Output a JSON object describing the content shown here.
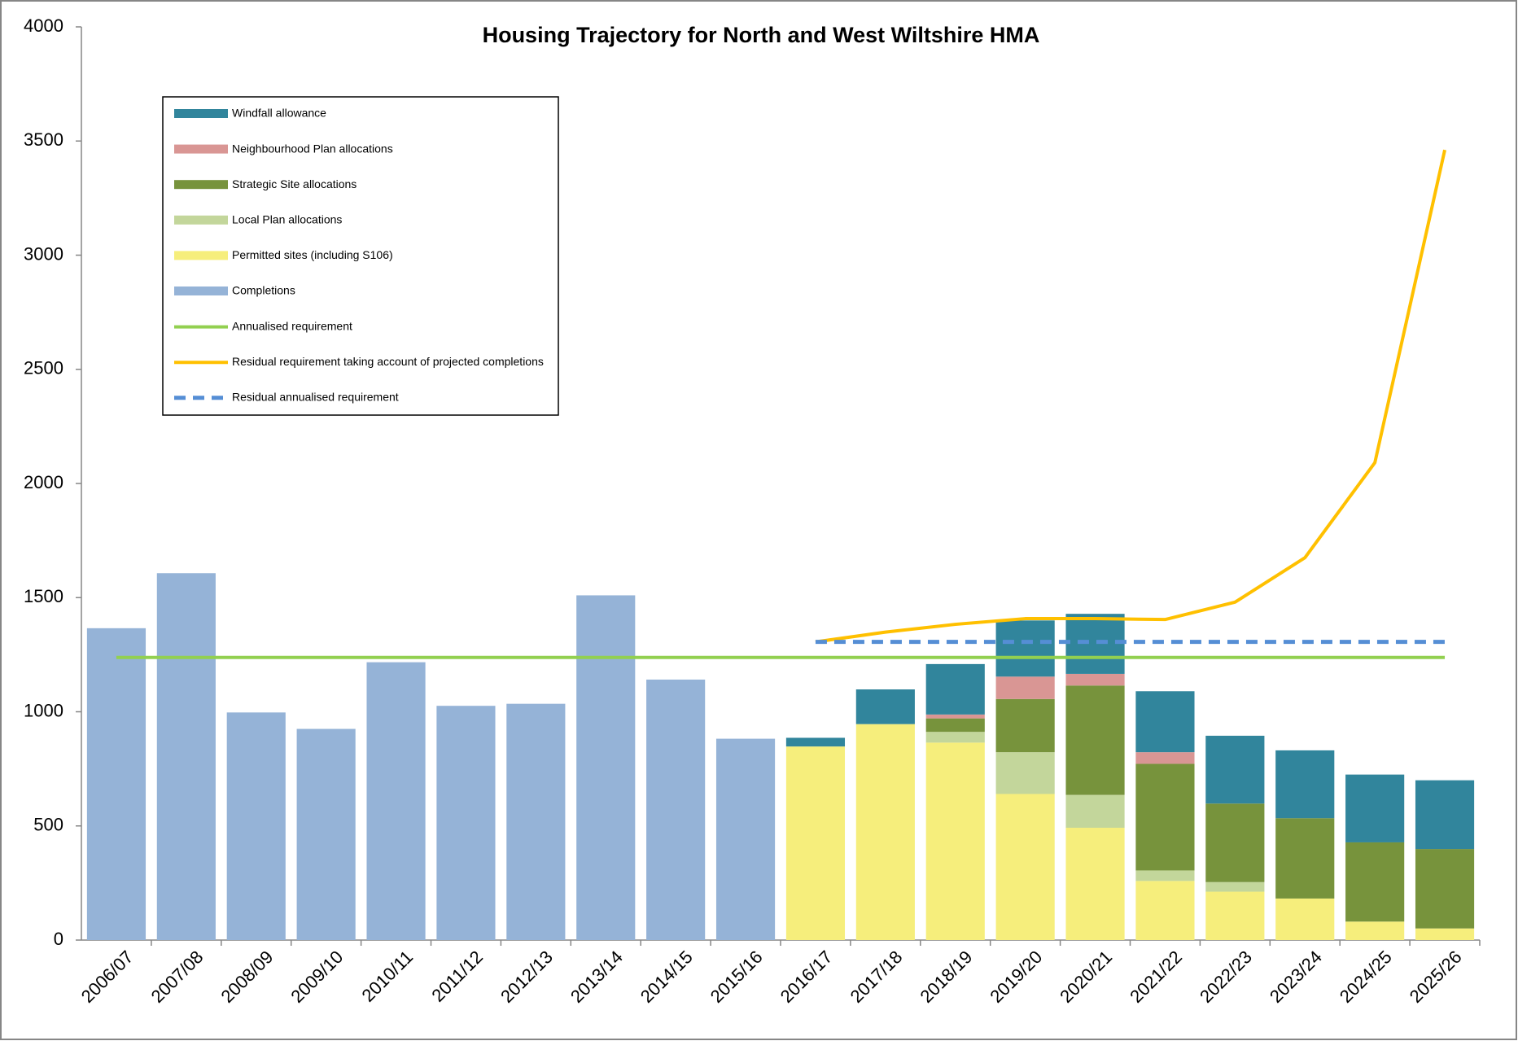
{
  "chart_data": {
    "type": "bar",
    "stacked": true,
    "title": "Housing Trajectory for North and West Wiltshire HMA",
    "categories": [
      "2006/07",
      "2007/08",
      "2008/09",
      "2009/10",
      "2010/11",
      "2011/12",
      "2012/13",
      "2013/14",
      "2014/15",
      "2015/16",
      "2016/17",
      "2017/18",
      "2018/19",
      "2019/20",
      "2020/21",
      "2021/22",
      "2022/23",
      "2023/24",
      "2024/25",
      "2025/26"
    ],
    "ylim": [
      0,
      4000
    ],
    "yticks": [
      0,
      500,
      1000,
      1500,
      2000,
      2500,
      3000,
      3500,
      4000
    ],
    "series": [
      {
        "name": "Windfall allowance",
        "color": "#31859c",
        "type": "bar",
        "values": [
          0,
          0,
          0,
          0,
          0,
          0,
          0,
          0,
          0,
          0,
          38,
          152,
          221,
          246,
          263,
          267,
          297,
          297,
          297,
          301
        ]
      },
      {
        "name": "Neighbourhood Plan allocations",
        "color": "#d99694",
        "type": "bar",
        "values": [
          0,
          0,
          0,
          0,
          0,
          0,
          0,
          0,
          0,
          0,
          0,
          0,
          17,
          98,
          51,
          51,
          0,
          0,
          0,
          0
        ]
      },
      {
        "name": "Strategic Site allocations",
        "color": "#77933c",
        "type": "bar",
        "values": [
          0,
          0,
          0,
          0,
          0,
          0,
          0,
          0,
          0,
          0,
          0,
          0,
          59,
          233,
          479,
          467,
          344,
          352,
          347,
          348
        ]
      },
      {
        "name": "Local Plan allocations",
        "color": "#c3d69b",
        "type": "bar",
        "values": [
          0,
          0,
          0,
          0,
          0,
          0,
          0,
          0,
          0,
          0,
          0,
          0,
          47,
          183,
          144,
          46,
          42,
          0,
          0,
          0
        ]
      },
      {
        "name": "Permitted sites (including S106)",
        "color": "#f6ee7c",
        "type": "bar",
        "values": [
          0,
          0,
          0,
          0,
          0,
          0,
          0,
          0,
          0,
          0,
          848,
          946,
          865,
          640,
          492,
          259,
          212,
          182,
          81,
          51
        ]
      },
      {
        "name": "Completions",
        "color": "#95b3d7",
        "type": "bar",
        "values": [
          1366,
          1607,
          997,
          925,
          1217,
          1026,
          1035,
          1510,
          1141,
          882,
          0,
          0,
          0,
          0,
          0,
          0,
          0,
          0,
          0,
          0
        ]
      },
      {
        "name": "Annualised requirement",
        "color": "#92d050",
        "type": "line",
        "values": [
          1238,
          1238,
          1238,
          1238,
          1238,
          1238,
          1238,
          1238,
          1238,
          1238,
          1238,
          1238,
          1238,
          1238,
          1238,
          1238,
          1238,
          1238,
          1238,
          1238
        ]
      },
      {
        "name": "Residual requirement taking account of projected completions",
        "color": "#ffc000",
        "type": "line",
        "values": [
          null,
          null,
          null,
          null,
          null,
          null,
          null,
          null,
          null,
          null,
          1306,
          1349,
          1383,
          1408,
          1408,
          1404,
          1480,
          1675,
          2091,
          3461
        ]
      },
      {
        "name": "Residual annualised requirement",
        "color": "#558ed5",
        "type": "line",
        "dashed": true,
        "values": [
          null,
          null,
          null,
          null,
          null,
          null,
          null,
          null,
          null,
          null,
          1306,
          1306,
          1306,
          1306,
          1306,
          1306,
          1306,
          1306,
          1306,
          1306
        ]
      }
    ]
  }
}
